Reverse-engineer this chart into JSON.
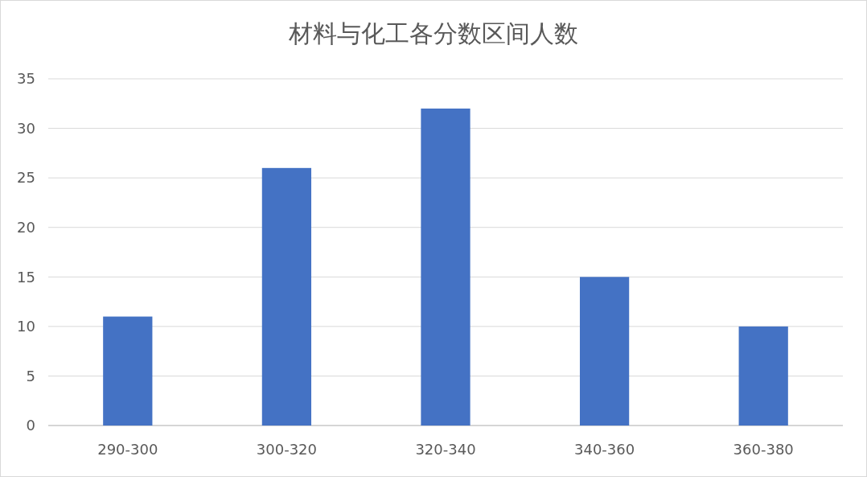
{
  "chart_data": {
    "type": "bar",
    "title": "材料与化工各分数区间人数",
    "categories": [
      "290-300",
      "300-320",
      "320-340",
      "340-360",
      "360-380"
    ],
    "values": [
      11,
      26,
      32,
      15,
      10
    ],
    "color": "#4472c4",
    "ylim": [
      0,
      35
    ],
    "yticks": [
      0,
      5,
      10,
      15,
      20,
      25,
      30,
      35
    ],
    "grid": "y"
  }
}
